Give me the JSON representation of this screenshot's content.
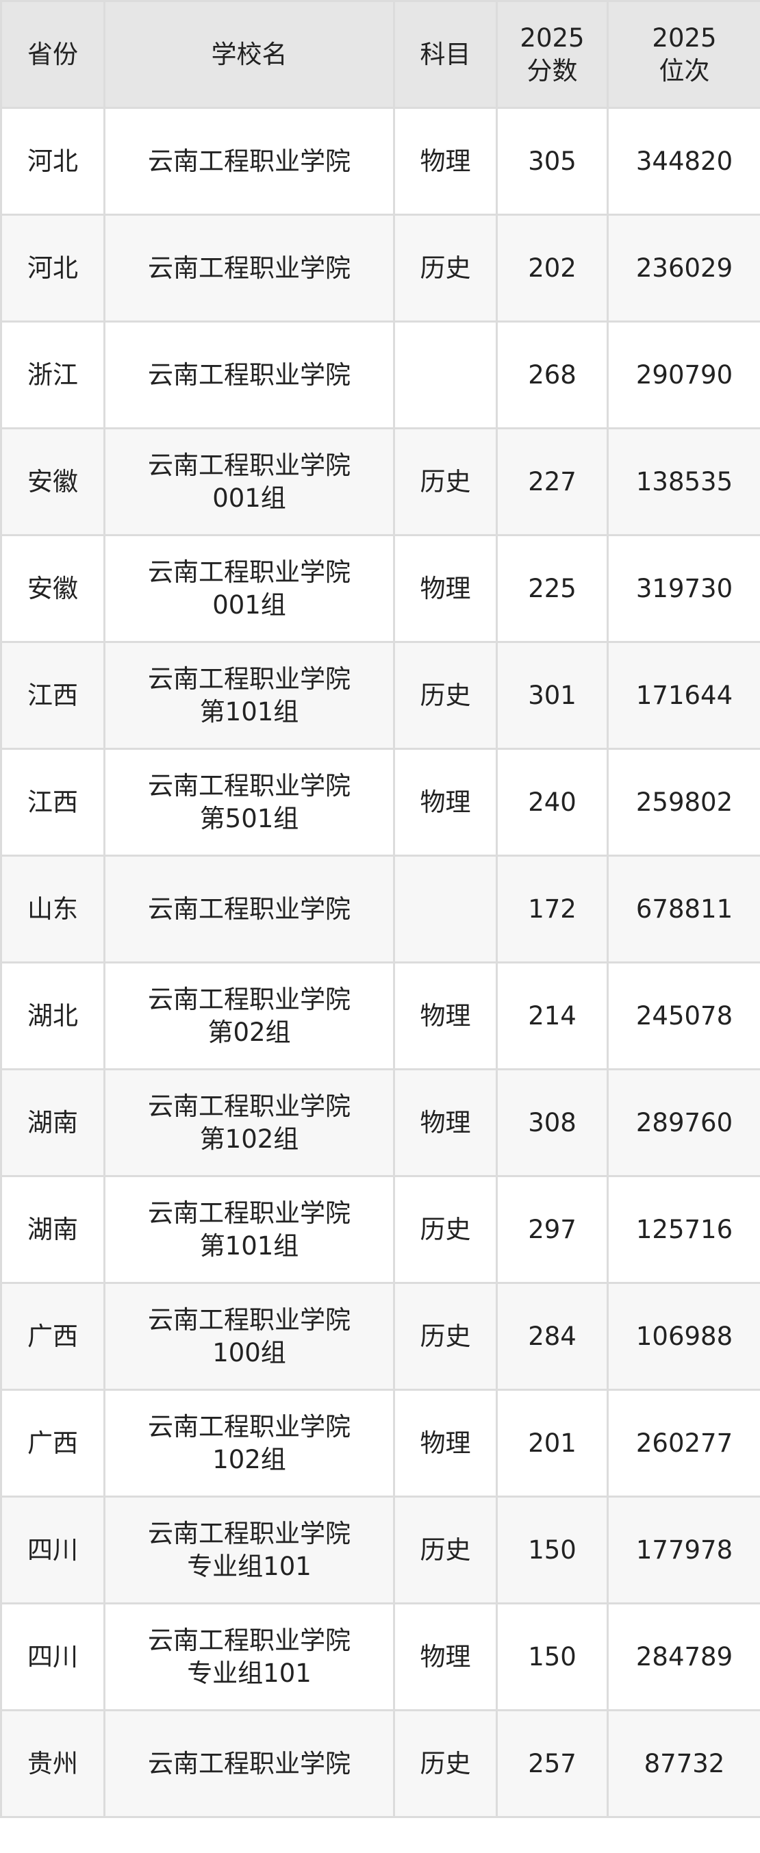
{
  "table": {
    "headers": [
      "省份",
      "学校名",
      "科目",
      "2025\n分数",
      "2025\n位次"
    ],
    "header_lines": [
      [
        "省份"
      ],
      [
        "学校名"
      ],
      [
        "科目"
      ],
      [
        "2025",
        "分数"
      ],
      [
        "2025",
        "位次"
      ]
    ],
    "rows": [
      {
        "province": "河北",
        "school": "云南工程职业学院",
        "subject": "物理",
        "score": "305",
        "rank": "344820"
      },
      {
        "province": "河北",
        "school": "云南工程职业学院",
        "subject": "历史",
        "score": "202",
        "rank": "236029"
      },
      {
        "province": "浙江",
        "school": "云南工程职业学院",
        "subject": "",
        "score": "268",
        "rank": "290790"
      },
      {
        "province": "安徽",
        "school": "云南工程职业学院001组",
        "subject": "历史",
        "score": "227",
        "rank": "138535"
      },
      {
        "province": "安徽",
        "school": "云南工程职业学院001组",
        "subject": "物理",
        "score": "225",
        "rank": "319730"
      },
      {
        "province": "江西",
        "school": "云南工程职业学院第101组",
        "subject": "历史",
        "score": "301",
        "rank": "171644"
      },
      {
        "province": "江西",
        "school": "云南工程职业学院第501组",
        "subject": "物理",
        "score": "240",
        "rank": "259802"
      },
      {
        "province": "山东",
        "school": "云南工程职业学院",
        "subject": "",
        "score": "172",
        "rank": "678811"
      },
      {
        "province": "湖北",
        "school": "云南工程职业学院第02组",
        "subject": "物理",
        "score": "214",
        "rank": "245078"
      },
      {
        "province": "湖南",
        "school": "云南工程职业学院第102组",
        "subject": "物理",
        "score": "308",
        "rank": "289760"
      },
      {
        "province": "湖南",
        "school": "云南工程职业学院第101组",
        "subject": "历史",
        "score": "297",
        "rank": "125716"
      },
      {
        "province": "广西",
        "school": "云南工程职业学院100组",
        "subject": "历史",
        "score": "284",
        "rank": "106988"
      },
      {
        "province": "广西",
        "school": "云南工程职业学院102组",
        "subject": "物理",
        "score": "201",
        "rank": "260277"
      },
      {
        "province": "四川",
        "school": "云南工程职业学院专业组101",
        "subject": "历史",
        "score": "150",
        "rank": "177978"
      },
      {
        "province": "四川",
        "school": "云南工程职业学院专业组101",
        "subject": "物理",
        "score": "150",
        "rank": "284789"
      },
      {
        "province": "贵州",
        "school": "云南工程职业学院",
        "subject": "历史",
        "score": "257",
        "rank": "87732"
      }
    ]
  },
  "colors": {
    "header_bg": "#e6e6e6",
    "stripe_bg": "#f7f7f7",
    "border": "#dcdcdc"
  }
}
